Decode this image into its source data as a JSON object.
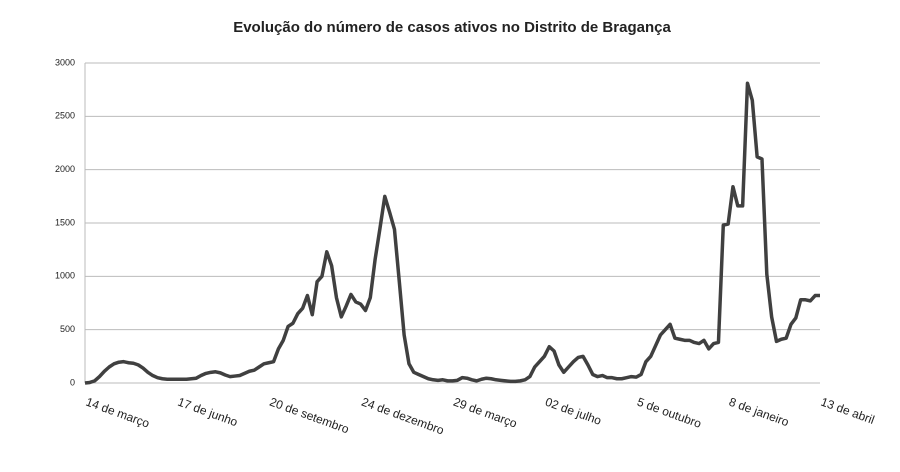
{
  "chart_data": {
    "type": "line",
    "title": "Evolução do número de casos ativos no Distrito de Bragança",
    "categories": [
      "14 de março",
      null,
      null,
      null,
      null,
      null,
      null,
      null,
      null,
      null,
      null,
      null,
      null,
      null,
      null,
      null,
      null,
      null,
      null,
      "17 de junho",
      null,
      null,
      null,
      null,
      null,
      null,
      null,
      null,
      null,
      null,
      null,
      null,
      null,
      null,
      null,
      null,
      null,
      null,
      "20 de setembro",
      null,
      null,
      null,
      null,
      null,
      null,
      null,
      null,
      null,
      null,
      null,
      null,
      null,
      null,
      null,
      null,
      null,
      null,
      "24 de dezembro",
      null,
      null,
      null,
      null,
      null,
      null,
      null,
      null,
      null,
      null,
      null,
      null,
      null,
      null,
      null,
      null,
      null,
      null,
      "29 de março",
      null,
      null,
      null,
      null,
      null,
      null,
      null,
      null,
      null,
      null,
      null,
      null,
      null,
      null,
      null,
      null,
      null,
      null,
      "02 de julho",
      null,
      null,
      null,
      null,
      null,
      null,
      null,
      null,
      null,
      null,
      null,
      null,
      null,
      null,
      null,
      null,
      null,
      null,
      "5 de outubro",
      null,
      null,
      null,
      null,
      null,
      null,
      null,
      null,
      null,
      null,
      null,
      null,
      null,
      null,
      null,
      null,
      null,
      null,
      "8 de janeiro",
      null,
      null,
      null,
      null,
      null,
      null,
      null,
      null,
      null,
      null,
      null,
      null,
      null,
      null,
      null,
      null,
      null,
      null,
      "13 de abril"
    ],
    "values": [
      0,
      5,
      20,
      60,
      110,
      150,
      180,
      195,
      200,
      190,
      185,
      170,
      140,
      100,
      70,
      50,
      40,
      35,
      35,
      35,
      35,
      35,
      40,
      45,
      70,
      90,
      100,
      105,
      95,
      75,
      60,
      65,
      70,
      90,
      110,
      120,
      150,
      180,
      190,
      200,
      320,
      400,
      530,
      560,
      650,
      700,
      820,
      640,
      950,
      1000,
      1230,
      1100,
      800,
      620,
      720,
      830,
      760,
      740,
      680,
      800,
      1160,
      1450,
      1750,
      1600,
      1440,
      950,
      450,
      180,
      100,
      80,
      60,
      40,
      30,
      25,
      30,
      20,
      20,
      25,
      50,
      45,
      30,
      20,
      35,
      45,
      40,
      30,
      25,
      20,
      15,
      15,
      20,
      30,
      60,
      150,
      200,
      250,
      340,
      300,
      170,
      100,
      150,
      200,
      240,
      250,
      170,
      80,
      60,
      70,
      50,
      50,
      40,
      40,
      50,
      60,
      55,
      80,
      200,
      250,
      350,
      450,
      500,
      550,
      420,
      410,
      400,
      400,
      380,
      370,
      400,
      320,
      370,
      380,
      1480,
      1490,
      1840,
      1660,
      1660,
      2810,
      2650,
      2120,
      2100,
      1020,
      620,
      390,
      410,
      420,
      550,
      610,
      780,
      780,
      770,
      820,
      820
    ],
    "color": "#404040",
    "ylim": [
      0,
      3000
    ],
    "yticks": [
      0,
      500,
      1000,
      1500,
      2000,
      2500,
      3000
    ],
    "grid": true
  }
}
